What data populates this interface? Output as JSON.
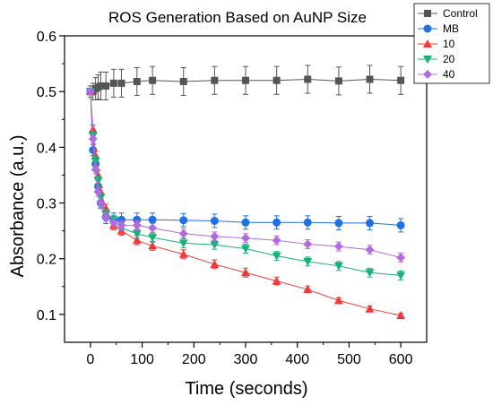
{
  "chart_data": {
    "type": "scatter",
    "title": "ROS Generation Based on AuNP Size",
    "xlabel": "Time (seconds)",
    "ylabel": "Absorbance (a.u.)",
    "xlim": [
      -50,
      650
    ],
    "ylim": [
      0.05,
      0.6
    ],
    "xticks": [
      0,
      100,
      200,
      300,
      400,
      500,
      600
    ],
    "yticks": [
      0.1,
      0.2,
      0.3,
      0.4,
      0.5,
      0.6
    ],
    "xtick_labels": [
      "0",
      "100",
      "200",
      "300",
      "400",
      "500",
      "600"
    ],
    "ytick_labels": [
      "0.1",
      "0.2",
      "0.3",
      "0.4",
      "0.5",
      "0.6"
    ],
    "legend_position": "top-right",
    "series": [
      {
        "name": "Control",
        "color": "#555555",
        "marker": "square",
        "x": [
          0,
          5,
          10,
          15,
          20,
          30,
          45,
          60,
          90,
          120,
          180,
          240,
          300,
          360,
          420,
          480,
          540,
          600
        ],
        "y": [
          0.5,
          0.5,
          0.505,
          0.508,
          0.51,
          0.51,
          0.515,
          0.515,
          0.518,
          0.52,
          0.518,
          0.52,
          0.52,
          0.52,
          0.522,
          0.519,
          0.522,
          0.52
        ],
        "err": [
          0.01,
          0.015,
          0.02,
          0.022,
          0.025,
          0.025,
          0.025,
          0.025,
          0.025,
          0.025,
          0.025,
          0.025,
          0.025,
          0.025,
          0.025,
          0.025,
          0.025,
          0.025
        ]
      },
      {
        "name": "MB",
        "color": "#1f6fe5",
        "marker": "circle",
        "x": [
          0,
          5,
          10,
          15,
          20,
          30,
          45,
          60,
          90,
          120,
          180,
          240,
          300,
          360,
          420,
          480,
          540,
          600
        ],
        "y": [
          0.5,
          0.395,
          0.37,
          0.33,
          0.3,
          0.275,
          0.27,
          0.27,
          0.27,
          0.27,
          0.269,
          0.268,
          0.265,
          0.265,
          0.265,
          0.264,
          0.264,
          0.26
        ],
        "err": [
          0.005,
          0.01,
          0.01,
          0.01,
          0.01,
          0.012,
          0.012,
          0.012,
          0.012,
          0.012,
          0.012,
          0.012,
          0.012,
          0.012,
          0.012,
          0.012,
          0.012,
          0.012
        ]
      },
      {
        "name": "10",
        "color": "#f03a3a",
        "marker": "triangle-up",
        "x": [
          0,
          5,
          10,
          15,
          20,
          30,
          45,
          60,
          90,
          120,
          180,
          240,
          300,
          360,
          420,
          480,
          540,
          600
        ],
        "y": [
          0.5,
          0.432,
          0.385,
          0.35,
          0.32,
          0.29,
          0.26,
          0.25,
          0.233,
          0.223,
          0.208,
          0.19,
          0.175,
          0.16,
          0.145,
          0.125,
          0.11,
          0.098
        ],
        "err": [
          0.005,
          0.008,
          0.008,
          0.008,
          0.008,
          0.008,
          0.008,
          0.008,
          0.008,
          0.008,
          0.008,
          0.008,
          0.008,
          0.007,
          0.006,
          0.005,
          0.005,
          0.004
        ]
      },
      {
        "name": "20",
        "color": "#17b07a",
        "marker": "triangle-down",
        "x": [
          0,
          5,
          10,
          15,
          20,
          30,
          45,
          60,
          90,
          120,
          180,
          240,
          300,
          360,
          420,
          480,
          540,
          600
        ],
        "y": [
          0.5,
          0.42,
          0.375,
          0.34,
          0.31,
          0.28,
          0.27,
          0.255,
          0.245,
          0.238,
          0.228,
          0.225,
          0.218,
          0.205,
          0.195,
          0.187,
          0.175,
          0.17
        ],
        "err": [
          0.005,
          0.008,
          0.008,
          0.008,
          0.008,
          0.008,
          0.008,
          0.008,
          0.008,
          0.008,
          0.008,
          0.008,
          0.008,
          0.008,
          0.008,
          0.008,
          0.008,
          0.008
        ]
      },
      {
        "name": "40",
        "color": "#b36ae0",
        "marker": "diamond",
        "x": [
          0,
          5,
          10,
          15,
          20,
          30,
          45,
          60,
          90,
          120,
          180,
          240,
          300,
          360,
          420,
          480,
          540,
          600
        ],
        "y": [
          0.5,
          0.415,
          0.36,
          0.32,
          0.3,
          0.275,
          0.265,
          0.26,
          0.26,
          0.255,
          0.245,
          0.24,
          0.237,
          0.233,
          0.226,
          0.222,
          0.216,
          0.202
        ],
        "err": [
          0.005,
          0.008,
          0.008,
          0.008,
          0.008,
          0.008,
          0.008,
          0.008,
          0.008,
          0.008,
          0.008,
          0.008,
          0.008,
          0.008,
          0.008,
          0.008,
          0.008,
          0.008
        ]
      }
    ]
  }
}
